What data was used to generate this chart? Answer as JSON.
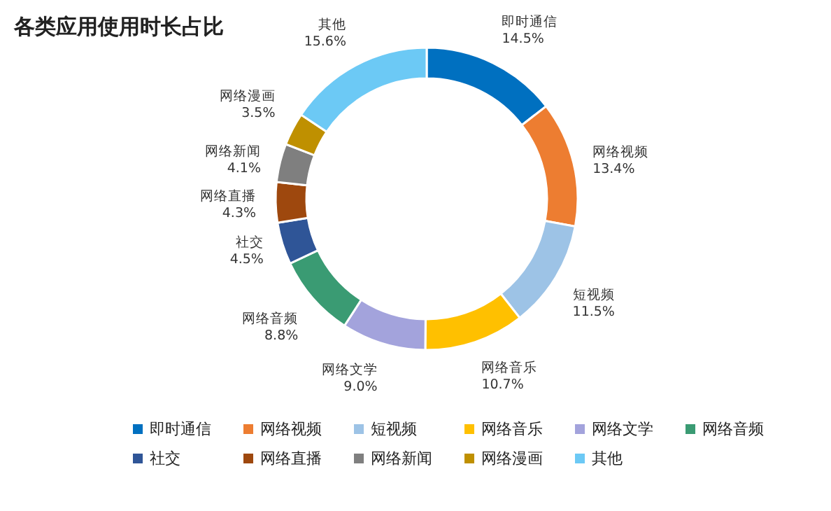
{
  "chart_data": {
    "type": "donut",
    "title": "各类应用使用时长占比",
    "categories": [
      "即时通信",
      "网络视频",
      "短视频",
      "网络音乐",
      "网络文学",
      "网络音频",
      "社交",
      "网络直播",
      "网络新闻",
      "网络漫画",
      "其他"
    ],
    "values": [
      14.5,
      13.4,
      11.5,
      10.7,
      9.0,
      8.8,
      4.5,
      4.3,
      4.1,
      3.5,
      15.6
    ],
    "value_labels": [
      "14.5%",
      "13.4%",
      "11.5%",
      "10.7%",
      "9.0%",
      "8.8%",
      "4.5%",
      "4.3%",
      "4.1%",
      "3.5%",
      "15.6%"
    ],
    "colors": [
      "#0070c0",
      "#ed7d31",
      "#9dc3e6",
      "#ffc000",
      "#a3a3dc",
      "#3a9b73",
      "#2f5597",
      "#9e480e",
      "#7f7f7f",
      "#bf9000",
      "#6cc9f5"
    ],
    "legend": "bottom"
  }
}
